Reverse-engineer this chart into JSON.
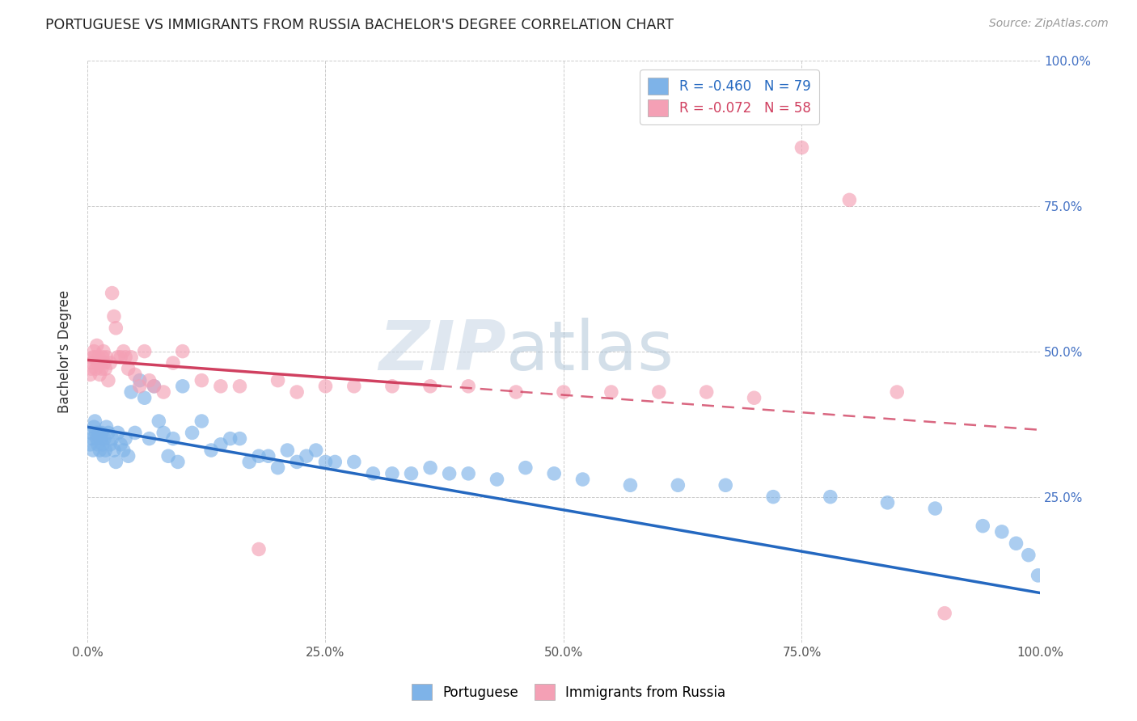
{
  "title": "PORTUGUESE VS IMMIGRANTS FROM RUSSIA BACHELOR'S DEGREE CORRELATION CHART",
  "source": "Source: ZipAtlas.com",
  "ylabel": "Bachelor's Degree",
  "blue_R": -0.46,
  "blue_N": 79,
  "pink_R": -0.072,
  "pink_N": 58,
  "blue_color": "#7EB3E8",
  "pink_color": "#F4A0B5",
  "blue_line_color": "#2468C0",
  "pink_line_color": "#D04060",
  "watermark_zip": "ZIP",
  "watermark_atlas": "atlas",
  "legend_label_blue": "Portuguese",
  "legend_label_pink": "Immigrants from Russia",
  "background_color": "#FFFFFF",
  "grid_color": "#CCCCCC",
  "right_tick_color": "#4472C4",
  "blue_intercept": 0.37,
  "blue_slope": -0.285,
  "pink_intercept": 0.485,
  "pink_slope": -0.12,
  "blue_x": [
    0.003,
    0.004,
    0.005,
    0.006,
    0.007,
    0.008,
    0.009,
    0.01,
    0.011,
    0.012,
    0.013,
    0.014,
    0.015,
    0.016,
    0.017,
    0.018,
    0.019,
    0.02,
    0.022,
    0.024,
    0.026,
    0.028,
    0.03,
    0.032,
    0.035,
    0.038,
    0.04,
    0.043,
    0.046,
    0.05,
    0.055,
    0.06,
    0.065,
    0.07,
    0.075,
    0.08,
    0.085,
    0.09,
    0.095,
    0.1,
    0.11,
    0.12,
    0.13,
    0.14,
    0.15,
    0.16,
    0.17,
    0.18,
    0.19,
    0.2,
    0.21,
    0.22,
    0.23,
    0.24,
    0.25,
    0.26,
    0.28,
    0.3,
    0.32,
    0.34,
    0.36,
    0.38,
    0.4,
    0.43,
    0.46,
    0.49,
    0.52,
    0.57,
    0.62,
    0.67,
    0.72,
    0.78,
    0.84,
    0.89,
    0.94,
    0.96,
    0.975,
    0.988,
    0.998
  ],
  "blue_y": [
    0.34,
    0.36,
    0.35,
    0.33,
    0.37,
    0.38,
    0.36,
    0.35,
    0.34,
    0.36,
    0.33,
    0.35,
    0.36,
    0.34,
    0.32,
    0.35,
    0.33,
    0.37,
    0.36,
    0.34,
    0.35,
    0.33,
    0.31,
    0.36,
    0.34,
    0.33,
    0.35,
    0.32,
    0.43,
    0.36,
    0.45,
    0.42,
    0.35,
    0.44,
    0.38,
    0.36,
    0.32,
    0.35,
    0.31,
    0.44,
    0.36,
    0.38,
    0.33,
    0.34,
    0.35,
    0.35,
    0.31,
    0.32,
    0.32,
    0.3,
    0.33,
    0.31,
    0.32,
    0.33,
    0.31,
    0.31,
    0.31,
    0.29,
    0.29,
    0.29,
    0.3,
    0.29,
    0.29,
    0.28,
    0.3,
    0.29,
    0.28,
    0.27,
    0.27,
    0.27,
    0.25,
    0.25,
    0.24,
    0.23,
    0.2,
    0.19,
    0.17,
    0.15,
    0.115
  ],
  "pink_x": [
    0.003,
    0.004,
    0.005,
    0.006,
    0.007,
    0.008,
    0.009,
    0.01,
    0.011,
    0.012,
    0.013,
    0.014,
    0.015,
    0.016,
    0.017,
    0.018,
    0.019,
    0.02,
    0.022,
    0.024,
    0.026,
    0.028,
    0.03,
    0.032,
    0.035,
    0.038,
    0.04,
    0.043,
    0.046,
    0.05,
    0.055,
    0.06,
    0.065,
    0.07,
    0.08,
    0.09,
    0.1,
    0.12,
    0.14,
    0.16,
    0.18,
    0.2,
    0.22,
    0.25,
    0.28,
    0.32,
    0.36,
    0.4,
    0.45,
    0.5,
    0.55,
    0.6,
    0.65,
    0.7,
    0.75,
    0.8,
    0.85,
    0.9
  ],
  "pink_y": [
    0.46,
    0.47,
    0.48,
    0.49,
    0.5,
    0.49,
    0.47,
    0.51,
    0.48,
    0.49,
    0.46,
    0.48,
    0.47,
    0.49,
    0.5,
    0.48,
    0.47,
    0.49,
    0.45,
    0.48,
    0.6,
    0.56,
    0.54,
    0.49,
    0.49,
    0.5,
    0.49,
    0.47,
    0.49,
    0.46,
    0.44,
    0.5,
    0.45,
    0.44,
    0.43,
    0.48,
    0.5,
    0.45,
    0.44,
    0.44,
    0.16,
    0.45,
    0.43,
    0.44,
    0.44,
    0.44,
    0.44,
    0.44,
    0.43,
    0.43,
    0.43,
    0.43,
    0.43,
    0.42,
    0.85,
    0.76,
    0.43,
    0.05
  ]
}
